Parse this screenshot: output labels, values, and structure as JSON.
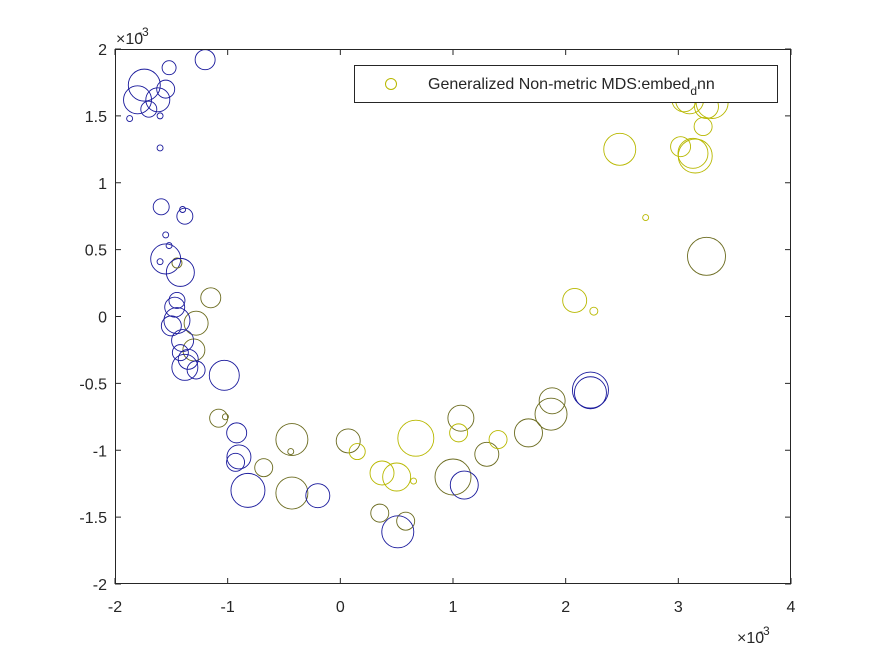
{
  "chart_data": {
    "type": "scatter",
    "xlim": [
      -2,
      4
    ],
    "ylim": [
      -2,
      2
    ],
    "x_ticks": [
      "-2",
      "-1",
      "0",
      "1",
      "2",
      "3",
      "4"
    ],
    "y_ticks": [
      "-2",
      "-1.5",
      "-1",
      "-0.5",
      "0",
      "0.5",
      "1",
      "1.5",
      "2"
    ],
    "x_exponent": {
      "base": "×10",
      "power": "-3"
    },
    "y_exponent": {
      "base": "×10",
      "power": "-3"
    },
    "grid": false,
    "legend": {
      "placement": "top-right",
      "label_main": "Generalized Non-metric MDS:embed",
      "label_sub": "d",
      "label_tail": "nn",
      "marker_color": "#b8b800"
    },
    "colors": {
      "blue": "#1a1a9c",
      "olive": "#6b6b1f",
      "yellow": "#b8b800"
    },
    "points": [
      {
        "x": -1.2,
        "y": 1.92,
        "s": 10,
        "c": "blue"
      },
      {
        "x": -1.52,
        "y": 1.86,
        "s": 7,
        "c": "blue"
      },
      {
        "x": -1.74,
        "y": 1.73,
        "s": 16,
        "c": "blue"
      },
      {
        "x": -1.8,
        "y": 1.62,
        "s": 14,
        "c": "blue"
      },
      {
        "x": -1.62,
        "y": 1.62,
        "s": 12,
        "c": "blue"
      },
      {
        "x": -1.55,
        "y": 1.7,
        "s": 9,
        "c": "blue"
      },
      {
        "x": -1.7,
        "y": 1.55,
        "s": 8,
        "c": "blue"
      },
      {
        "x": -1.87,
        "y": 1.48,
        "s": 3,
        "c": "blue"
      },
      {
        "x": -1.6,
        "y": 1.5,
        "s": 3,
        "c": "blue"
      },
      {
        "x": -1.6,
        "y": 1.26,
        "s": 3,
        "c": "blue"
      },
      {
        "x": -1.59,
        "y": 0.82,
        "s": 8,
        "c": "blue"
      },
      {
        "x": -1.4,
        "y": 0.8,
        "s": 3,
        "c": "blue"
      },
      {
        "x": -1.38,
        "y": 0.75,
        "s": 8,
        "c": "blue"
      },
      {
        "x": -1.55,
        "y": 0.61,
        "s": 3,
        "c": "blue"
      },
      {
        "x": -1.52,
        "y": 0.53,
        "s": 3,
        "c": "blue"
      },
      {
        "x": -1.6,
        "y": 0.41,
        "s": 3,
        "c": "blue"
      },
      {
        "x": -1.55,
        "y": 0.43,
        "s": 15,
        "c": "blue"
      },
      {
        "x": -1.45,
        "y": 0.4,
        "s": 5,
        "c": "olive"
      },
      {
        "x": -1.42,
        "y": 0.33,
        "s": 14,
        "c": "blue"
      },
      {
        "x": -1.45,
        "y": 0.12,
        "s": 8,
        "c": "blue"
      },
      {
        "x": -1.15,
        "y": 0.14,
        "s": 10,
        "c": "olive"
      },
      {
        "x": -1.47,
        "y": 0.07,
        "s": 10,
        "c": "blue"
      },
      {
        "x": -1.28,
        "y": -0.05,
        "s": 12,
        "c": "olive"
      },
      {
        "x": -1.45,
        "y": -0.03,
        "s": 13,
        "c": "blue"
      },
      {
        "x": -1.5,
        "y": -0.07,
        "s": 10,
        "c": "blue"
      },
      {
        "x": -1.4,
        "y": -0.18,
        "s": 11,
        "c": "blue"
      },
      {
        "x": -1.3,
        "y": -0.25,
        "s": 11,
        "c": "olive"
      },
      {
        "x": -1.42,
        "y": -0.27,
        "s": 8,
        "c": "blue"
      },
      {
        "x": -1.35,
        "y": -0.32,
        "s": 10,
        "c": "blue"
      },
      {
        "x": -1.38,
        "y": -0.38,
        "s": 13,
        "c": "blue"
      },
      {
        "x": -1.28,
        "y": -0.4,
        "s": 9,
        "c": "blue"
      },
      {
        "x": -1.03,
        "y": -0.44,
        "s": 15,
        "c": "blue"
      },
      {
        "x": -1.08,
        "y": -0.76,
        "s": 9,
        "c": "olive"
      },
      {
        "x": -1.02,
        "y": -0.75,
        "s": 3,
        "c": "olive"
      },
      {
        "x": -0.92,
        "y": -0.87,
        "s": 10,
        "c": "blue"
      },
      {
        "x": -0.9,
        "y": -1.05,
        "s": 12,
        "c": "blue"
      },
      {
        "x": -0.93,
        "y": -1.09,
        "s": 9,
        "c": "blue"
      },
      {
        "x": -0.68,
        "y": -1.13,
        "s": 9,
        "c": "olive"
      },
      {
        "x": -0.82,
        "y": -1.3,
        "s": 17,
        "c": "blue"
      },
      {
        "x": -0.43,
        "y": -0.92,
        "s": 16,
        "c": "olive"
      },
      {
        "x": -0.44,
        "y": -1.01,
        "s": 3,
        "c": "olive"
      },
      {
        "x": -0.43,
        "y": -1.32,
        "s": 16,
        "c": "olive"
      },
      {
        "x": -0.2,
        "y": -1.34,
        "s": 12,
        "c": "blue"
      },
      {
        "x": 0.07,
        "y": -0.93,
        "s": 12,
        "c": "olive"
      },
      {
        "x": 0.15,
        "y": -1.01,
        "s": 8,
        "c": "yellow"
      },
      {
        "x": 0.37,
        "y": -1.17,
        "s": 12,
        "c": "yellow"
      },
      {
        "x": 0.5,
        "y": -1.2,
        "s": 14,
        "c": "yellow"
      },
      {
        "x": 0.65,
        "y": -1.23,
        "s": 3,
        "c": "yellow"
      },
      {
        "x": 0.67,
        "y": -0.91,
        "s": 18,
        "c": "yellow"
      },
      {
        "x": 0.35,
        "y": -1.47,
        "s": 9,
        "c": "olive"
      },
      {
        "x": 0.58,
        "y": -1.53,
        "s": 9,
        "c": "olive"
      },
      {
        "x": 0.51,
        "y": -1.61,
        "s": 16,
        "c": "blue"
      },
      {
        "x": 1.0,
        "y": -1.2,
        "s": 18,
        "c": "olive"
      },
      {
        "x": 1.07,
        "y": -0.76,
        "s": 13,
        "c": "olive"
      },
      {
        "x": 1.05,
        "y": -0.87,
        "s": 9,
        "c": "yellow"
      },
      {
        "x": 1.1,
        "y": -1.26,
        "s": 14,
        "c": "blue"
      },
      {
        "x": 1.3,
        "y": -1.03,
        "s": 12,
        "c": "olive"
      },
      {
        "x": 1.4,
        "y": -0.92,
        "s": 9,
        "c": "yellow"
      },
      {
        "x": 1.67,
        "y": -0.87,
        "s": 14,
        "c": "olive"
      },
      {
        "x": 1.87,
        "y": -0.73,
        "s": 16,
        "c": "olive"
      },
      {
        "x": 1.88,
        "y": -0.63,
        "s": 13,
        "c": "olive"
      },
      {
        "x": 2.22,
        "y": -0.55,
        "s": 18,
        "c": "blue"
      },
      {
        "x": 2.22,
        "y": -0.57,
        "s": 16,
        "c": "blue"
      },
      {
        "x": 2.08,
        "y": 0.12,
        "s": 12,
        "c": "yellow"
      },
      {
        "x": 2.25,
        "y": 0.04,
        "s": 4,
        "c": "yellow"
      },
      {
        "x": 2.48,
        "y": 1.25,
        "s": 16,
        "c": "yellow"
      },
      {
        "x": 2.71,
        "y": 0.74,
        "s": 3,
        "c": "yellow"
      },
      {
        "x": 3.02,
        "y": 1.27,
        "s": 10,
        "c": "yellow"
      },
      {
        "x": 3.15,
        "y": 1.2,
        "s": 17,
        "c": "yellow"
      },
      {
        "x": 3.13,
        "y": 1.22,
        "s": 15,
        "c": "yellow"
      },
      {
        "x": 3.22,
        "y": 1.42,
        "s": 9,
        "c": "yellow"
      },
      {
        "x": 3.25,
        "y": 1.57,
        "s": 12,
        "c": "yellow"
      },
      {
        "x": 3.3,
        "y": 1.6,
        "s": 16,
        "c": "yellow"
      },
      {
        "x": 3.05,
        "y": 1.62,
        "s": 12,
        "c": "yellow"
      },
      {
        "x": 3.1,
        "y": 1.62,
        "s": 14,
        "c": "yellow"
      },
      {
        "x": 3.25,
        "y": 0.45,
        "s": 19,
        "c": "olive"
      }
    ]
  }
}
